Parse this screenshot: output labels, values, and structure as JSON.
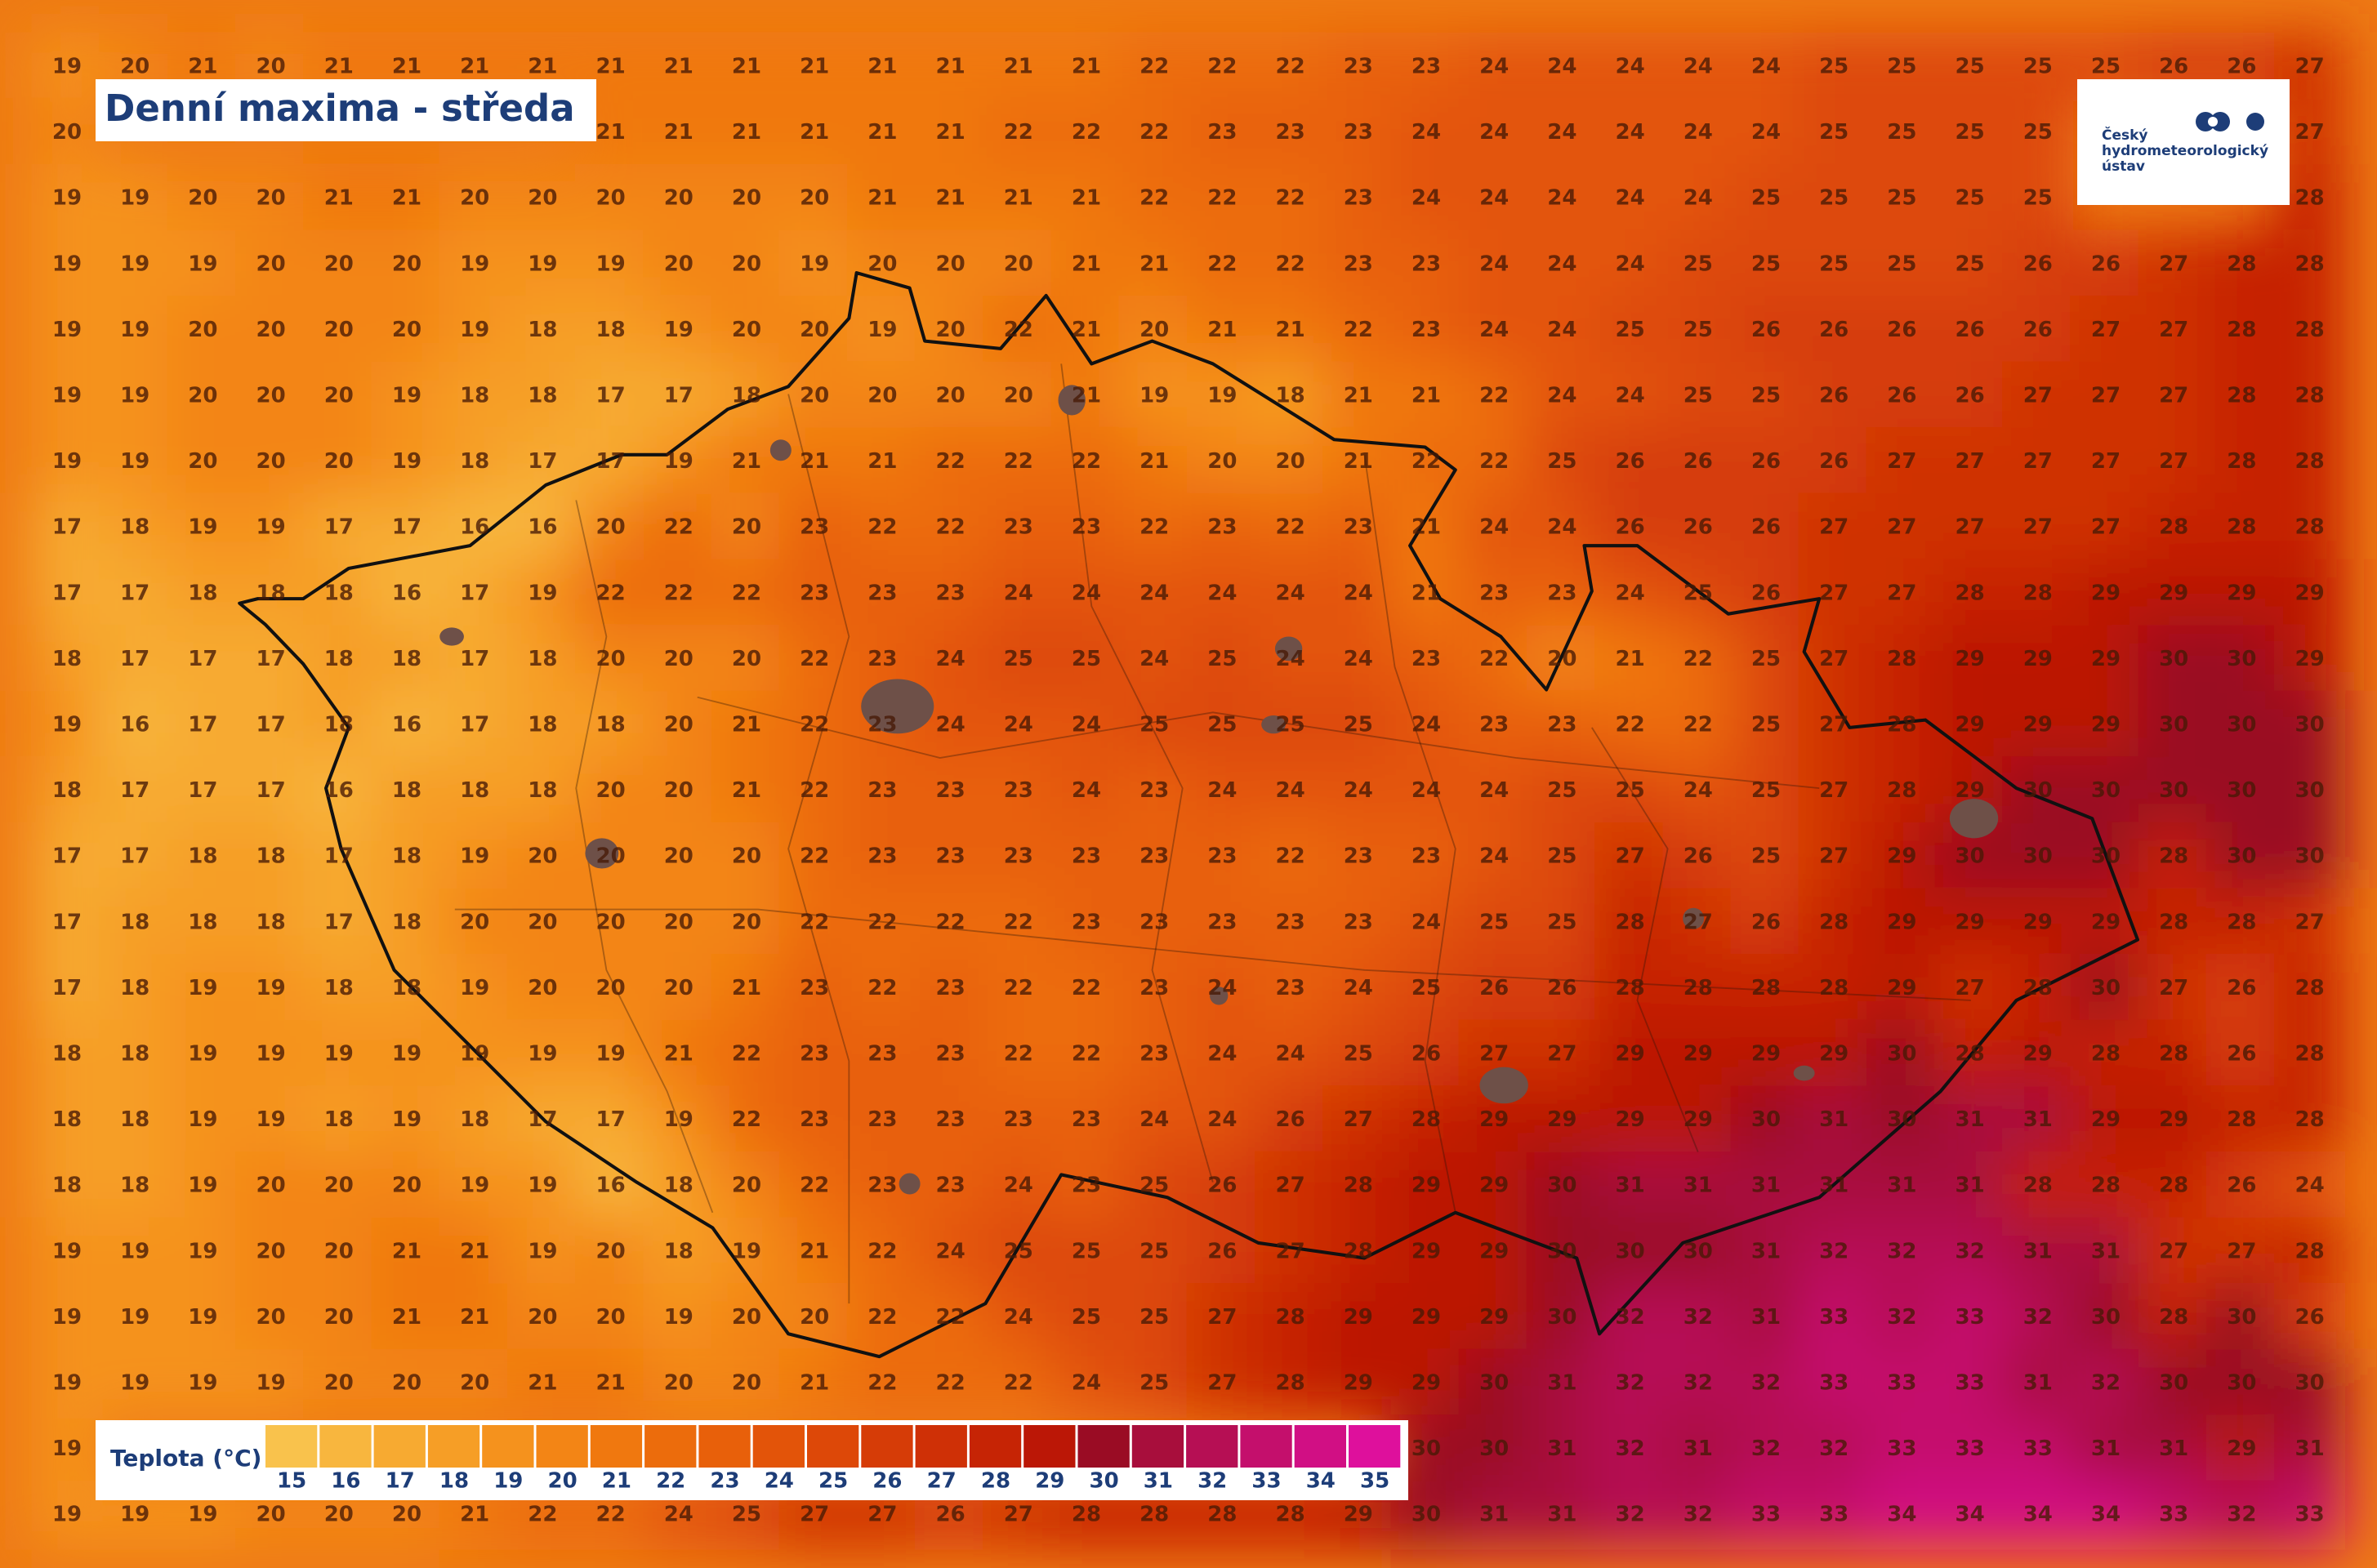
{
  "title": "Denní maxima - středa",
  "logo": {
    "lines": [
      "Český",
      "hydrometeorologický",
      "ústav"
    ]
  },
  "legend": {
    "title": "Teplota (°C)",
    "values": [
      15,
      16,
      17,
      18,
      19,
      20,
      21,
      22,
      23,
      24,
      25,
      26,
      27,
      28,
      29,
      30,
      31,
      32,
      33,
      34,
      35
    ],
    "colors": [
      "#f9c24c",
      "#f8b63e",
      "#f7aa31",
      "#f69e26",
      "#f5921d",
      "#f38515",
      "#f0780f",
      "#ec6c0c",
      "#e8600a",
      "#e35409",
      "#dd4808",
      "#d63c07",
      "#cf3006",
      "#c62405",
      "#bb1706",
      "#9a0c24",
      "#a80e3c",
      "#b60f54",
      "#c40f6c",
      "#d10f84",
      "#de109c"
    ]
  },
  "grid": {
    "rows": [
      [
        19,
        20,
        21,
        20,
        21,
        21,
        21,
        21,
        21,
        21,
        21,
        21,
        21,
        21,
        21,
        21,
        22,
        22,
        22,
        23,
        23,
        24,
        24,
        24,
        24,
        24,
        25,
        25,
        25,
        25,
        25,
        26,
        26,
        27
      ],
      [
        20,
        null,
        null,
        null,
        null,
        null,
        null,
        null,
        21,
        21,
        21,
        21,
        21,
        21,
        22,
        22,
        22,
        23,
        23,
        23,
        24,
        24,
        24,
        24,
        24,
        24,
        25,
        25,
        25,
        25,
        null,
        null,
        null,
        27
      ],
      [
        19,
        19,
        20,
        20,
        21,
        21,
        20,
        20,
        20,
        20,
        20,
        20,
        21,
        21,
        21,
        21,
        22,
        22,
        22,
        23,
        24,
        24,
        24,
        24,
        24,
        25,
        25,
        25,
        25,
        25,
        null,
        null,
        null,
        28
      ],
      [
        19,
        19,
        19,
        20,
        20,
        20,
        19,
        19,
        19,
        20,
        20,
        19,
        20,
        20,
        20,
        21,
        21,
        22,
        22,
        23,
        23,
        24,
        24,
        24,
        25,
        25,
        25,
        25,
        25,
        26,
        26,
        27,
        28,
        28
      ],
      [
        19,
        19,
        20,
        20,
        20,
        20,
        19,
        18,
        18,
        19,
        20,
        20,
        19,
        20,
        22,
        21,
        20,
        21,
        21,
        22,
        23,
        24,
        24,
        25,
        25,
        26,
        26,
        26,
        26,
        26,
        27,
        27,
        28,
        28
      ],
      [
        19,
        19,
        20,
        20,
        20,
        19,
        18,
        18,
        17,
        17,
        18,
        20,
        20,
        20,
        20,
        21,
        19,
        19,
        18,
        21,
        21,
        22,
        24,
        24,
        25,
        25,
        26,
        26,
        26,
        27,
        27,
        27,
        28,
        28
      ],
      [
        19,
        19,
        20,
        20,
        20,
        19,
        18,
        17,
        17,
        19,
        21,
        21,
        21,
        22,
        22,
        22,
        21,
        20,
        20,
        21,
        22,
        22,
        25,
        26,
        26,
        26,
        26,
        27,
        27,
        27,
        27,
        27,
        28,
        28
      ],
      [
        17,
        18,
        19,
        19,
        17,
        17,
        16,
        16,
        20,
        22,
        20,
        23,
        22,
        22,
        23,
        23,
        22,
        23,
        22,
        23,
        21,
        24,
        24,
        26,
        26,
        26,
        27,
        27,
        27,
        27,
        27,
        28,
        28,
        28
      ],
      [
        17,
        17,
        18,
        18,
        18,
        16,
        17,
        19,
        22,
        22,
        22,
        23,
        23,
        23,
        24,
        24,
        24,
        24,
        24,
        24,
        21,
        23,
        23,
        24,
        25,
        26,
        27,
        27,
        28,
        28,
        29,
        29,
        29,
        29
      ],
      [
        18,
        17,
        17,
        17,
        18,
        18,
        17,
        18,
        20,
        20,
        20,
        22,
        23,
        24,
        25,
        25,
        24,
        25,
        24,
        24,
        23,
        22,
        20,
        21,
        22,
        25,
        27,
        28,
        29,
        29,
        29,
        30,
        30,
        29
      ],
      [
        19,
        16,
        17,
        17,
        18,
        16,
        17,
        18,
        18,
        20,
        21,
        22,
        23,
        24,
        24,
        24,
        25,
        25,
        25,
        25,
        24,
        23,
        23,
        22,
        22,
        25,
        27,
        28,
        29,
        29,
        29,
        30,
        30,
        30
      ],
      [
        18,
        17,
        17,
        17,
        16,
        18,
        18,
        18,
        20,
        20,
        21,
        22,
        23,
        23,
        23,
        24,
        23,
        24,
        24,
        24,
        24,
        24,
        25,
        25,
        24,
        25,
        27,
        28,
        29,
        30,
        30,
        30,
        30,
        30
      ],
      [
        17,
        17,
        18,
        18,
        17,
        18,
        19,
        20,
        20,
        20,
        20,
        22,
        23,
        23,
        23,
        23,
        23,
        23,
        22,
        23,
        23,
        24,
        25,
        27,
        26,
        25,
        27,
        29,
        30,
        30,
        30,
        28,
        30,
        30
      ],
      [
        17,
        18,
        18,
        18,
        17,
        18,
        20,
        20,
        20,
        20,
        20,
        22,
        22,
        22,
        22,
        23,
        23,
        23,
        23,
        23,
        24,
        25,
        25,
        28,
        27,
        26,
        28,
        29,
        29,
        29,
        29,
        28,
        28,
        27
      ],
      [
        17,
        18,
        19,
        19,
        18,
        18,
        19,
        20,
        20,
        20,
        21,
        23,
        22,
        23,
        22,
        22,
        23,
        24,
        23,
        24,
        25,
        26,
        26,
        28,
        28,
        28,
        28,
        29,
        27,
        28,
        30,
        27,
        26,
        28
      ],
      [
        18,
        18,
        19,
        19,
        19,
        19,
        19,
        19,
        19,
        21,
        22,
        23,
        23,
        23,
        22,
        22,
        23,
        24,
        24,
        25,
        26,
        27,
        27,
        29,
        29,
        29,
        29,
        30,
        28,
        29,
        28,
        28,
        26,
        28
      ],
      [
        18,
        18,
        19,
        19,
        18,
        19,
        18,
        17,
        17,
        19,
        22,
        23,
        23,
        23,
        23,
        23,
        24,
        24,
        26,
        27,
        28,
        29,
        29,
        29,
        29,
        30,
        31,
        30,
        31,
        31,
        29,
        29,
        28,
        28
      ],
      [
        18,
        18,
        19,
        20,
        20,
        20,
        19,
        19,
        16,
        18,
        20,
        22,
        23,
        23,
        24,
        23,
        25,
        26,
        27,
        28,
        29,
        29,
        30,
        31,
        31,
        31,
        31,
        31,
        31,
        28,
        28,
        28,
        26,
        24
      ],
      [
        19,
        19,
        19,
        20,
        20,
        21,
        21,
        19,
        20,
        18,
        19,
        21,
        22,
        24,
        25,
        25,
        25,
        26,
        27,
        28,
        29,
        29,
        30,
        30,
        30,
        31,
        32,
        32,
        32,
        31,
        31,
        27,
        27,
        28
      ],
      [
        19,
        19,
        19,
        20,
        20,
        21,
        21,
        20,
        20,
        19,
        20,
        20,
        22,
        22,
        24,
        25,
        25,
        27,
        28,
        29,
        29,
        29,
        30,
        32,
        32,
        31,
        33,
        32,
        33,
        32,
        30,
        28,
        30,
        26
      ],
      [
        19,
        19,
        19,
        19,
        20,
        20,
        20,
        21,
        21,
        20,
        20,
        21,
        22,
        22,
        22,
        24,
        25,
        27,
        28,
        29,
        29,
        30,
        31,
        32,
        32,
        32,
        33,
        33,
        33,
        31,
        32,
        30,
        30,
        30
      ],
      [
        19,
        null,
        null,
        null,
        null,
        null,
        null,
        null,
        null,
        null,
        null,
        null,
        null,
        null,
        null,
        null,
        null,
        null,
        null,
        null,
        30,
        30,
        31,
        32,
        31,
        32,
        32,
        33,
        33,
        33,
        31,
        31,
        29,
        31
      ],
      [
        19,
        19,
        19,
        20,
        20,
        20,
        21,
        22,
        22,
        24,
        25,
        27,
        27,
        26,
        27,
        28,
        28,
        28,
        28,
        29,
        30,
        31,
        31,
        32,
        32,
        33,
        33,
        34,
        34,
        34,
        34,
        33,
        32,
        33
      ]
    ]
  }
}
